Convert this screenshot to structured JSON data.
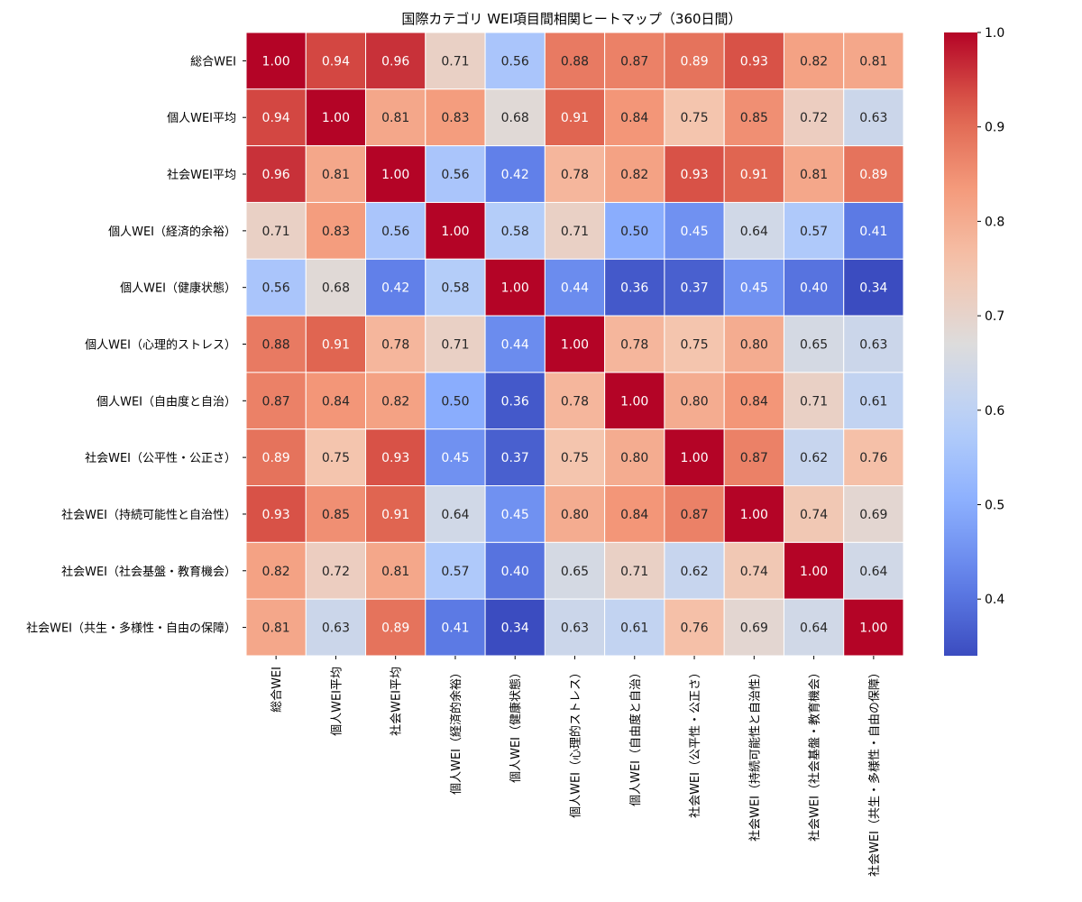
{
  "chart_data": {
    "type": "heatmap",
    "title": "国際カテゴリ WEI項目間相関ヒートマップ（360日間）",
    "xlabel": "",
    "ylabel": "",
    "labels": [
      "総合WEI",
      "個人WEI平均",
      "社会WEI平均",
      "個人WEI（経済的余裕）",
      "個人WEI（健康状態）",
      "個人WEI（心理的ストレス）",
      "個人WEI（自由度と自治）",
      "社会WEI（公平性・公正さ）",
      "社会WEI（持続可能性と自治性）",
      "社会WEI（社会基盤・教育機会）",
      "社会WEI（共生・多様性・自由の保障）"
    ],
    "matrix": [
      [
        1.0,
        0.94,
        0.96,
        0.71,
        0.56,
        0.88,
        0.87,
        0.89,
        0.93,
        0.82,
        0.81
      ],
      [
        0.94,
        1.0,
        0.81,
        0.83,
        0.68,
        0.91,
        0.84,
        0.75,
        0.85,
        0.72,
        0.63
      ],
      [
        0.96,
        0.81,
        1.0,
        0.56,
        0.42,
        0.78,
        0.82,
        0.93,
        0.91,
        0.81,
        0.89
      ],
      [
        0.71,
        0.83,
        0.56,
        1.0,
        0.58,
        0.71,
        0.5,
        0.45,
        0.64,
        0.57,
        0.41
      ],
      [
        0.56,
        0.68,
        0.42,
        0.58,
        1.0,
        0.44,
        0.36,
        0.37,
        0.45,
        0.4,
        0.34
      ],
      [
        0.88,
        0.91,
        0.78,
        0.71,
        0.44,
        1.0,
        0.78,
        0.75,
        0.8,
        0.65,
        0.63
      ],
      [
        0.87,
        0.84,
        0.82,
        0.5,
        0.36,
        0.78,
        1.0,
        0.8,
        0.84,
        0.71,
        0.61
      ],
      [
        0.89,
        0.75,
        0.93,
        0.45,
        0.37,
        0.75,
        0.8,
        1.0,
        0.87,
        0.62,
        0.76
      ],
      [
        0.93,
        0.85,
        0.91,
        0.64,
        0.45,
        0.8,
        0.84,
        0.87,
        1.0,
        0.74,
        0.69
      ],
      [
        0.82,
        0.72,
        0.81,
        0.57,
        0.4,
        0.65,
        0.71,
        0.62,
        0.74,
        1.0,
        0.64
      ],
      [
        0.81,
        0.63,
        0.89,
        0.41,
        0.34,
        0.63,
        0.61,
        0.76,
        0.69,
        0.64,
        1.0
      ]
    ],
    "colormap": "coolwarm",
    "vmin": 0.34,
    "vmax": 1.0,
    "colorbar_ticks": [
      "0.4",
      "0.5",
      "0.6",
      "0.7",
      "0.8",
      "0.9",
      "1.0"
    ],
    "grid": true,
    "legend": "colorbar-right"
  }
}
